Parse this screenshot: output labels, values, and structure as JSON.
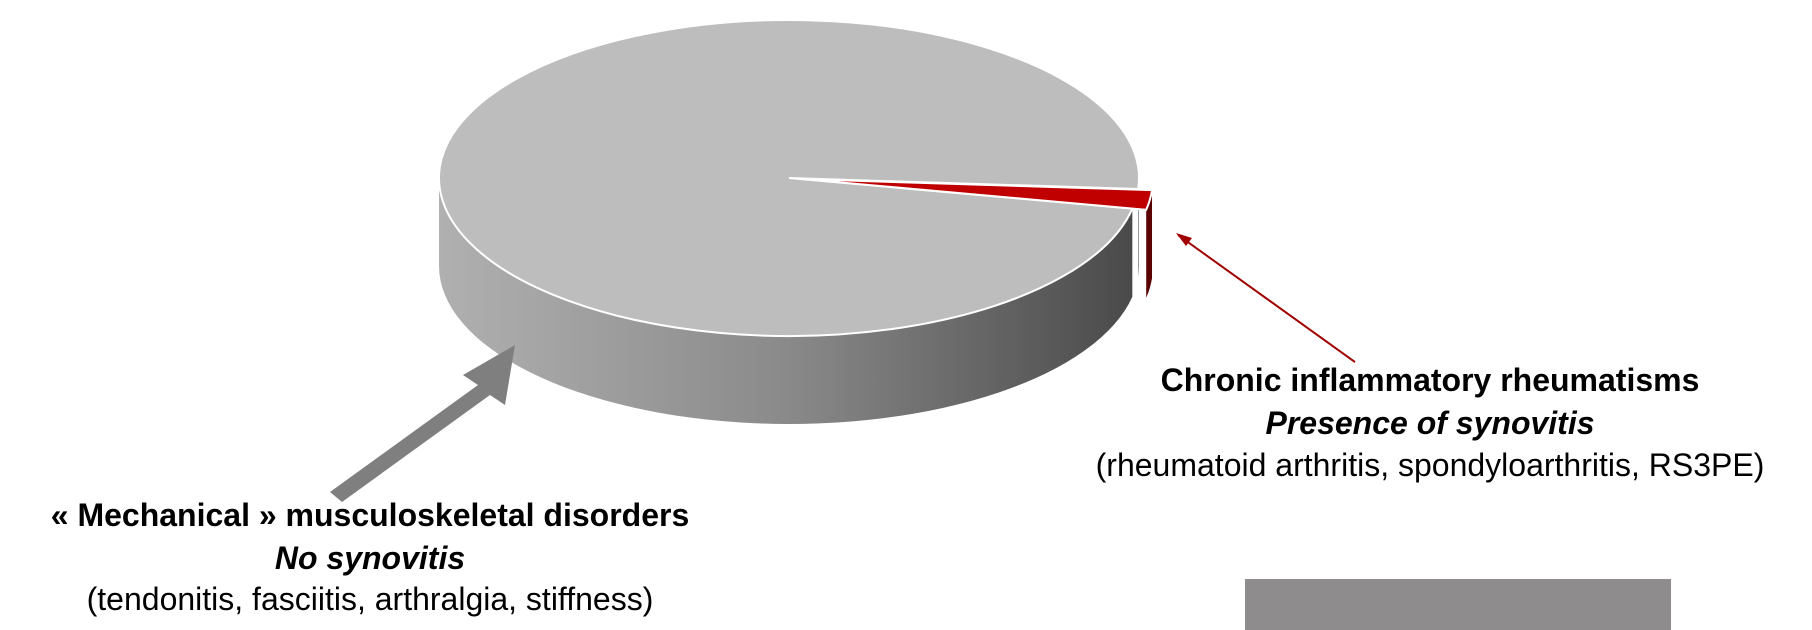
{
  "chart_data": {
    "type": "pie",
    "categories": [
      "« Mechanical » musculoskeletal disorders",
      "Chronic inflammatory rheumatisms"
    ],
    "subtitles": [
      "No synovitis",
      "Presence of synovitis"
    ],
    "details": [
      "(tendonitis, fasciitis, arthralgia, stiffness)",
      "(rheumatoid arthritis, spondyloarthritis, RS3PE)"
    ],
    "values": [
      98,
      2
    ],
    "colors": [
      "#bdbdbd",
      "#c00000"
    ],
    "side_colors": [
      "#6e6e6e",
      "#5a0000"
    ]
  }
}
